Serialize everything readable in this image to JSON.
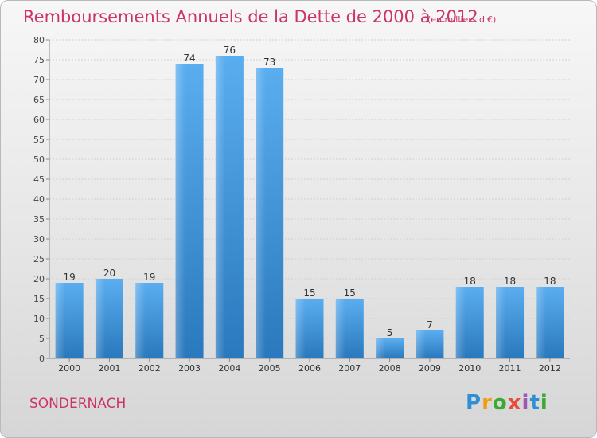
{
  "title": "Remboursements Annuels de la Dette de 2000 à 2012",
  "subtitle": "(en milliers d'€)",
  "commune": "SONDERNACH",
  "logo": {
    "letters": [
      "P",
      "r",
      "o",
      "x",
      "i",
      "t",
      "i"
    ],
    "colors": [
      "#2f8fd6",
      "#f39c12",
      "#3aaa35",
      "#e74c3c",
      "#9b59b6",
      "#2f8fd6",
      "#3aaa35"
    ]
  },
  "chart_data": {
    "type": "bar",
    "title": "Remboursements Annuels de la Dette de 2000 à 2012",
    "subtitle": "(en milliers d'€)",
    "categories": [
      "2000",
      "2001",
      "2002",
      "2003",
      "2004",
      "2005",
      "2006",
      "2007",
      "2008",
      "2009",
      "2010",
      "2011",
      "2012"
    ],
    "values": [
      19,
      20,
      19,
      74,
      76,
      73,
      15,
      15,
      5,
      7,
      18,
      18,
      18
    ],
    "ylim": [
      0,
      80
    ],
    "yticks": [
      0,
      5,
      10,
      15,
      20,
      25,
      30,
      35,
      40,
      45,
      50,
      55,
      60,
      65,
      70,
      75,
      80
    ],
    "xlabel": "",
    "ylabel": "",
    "grid": true,
    "bar_color": "#3f8fd6"
  }
}
